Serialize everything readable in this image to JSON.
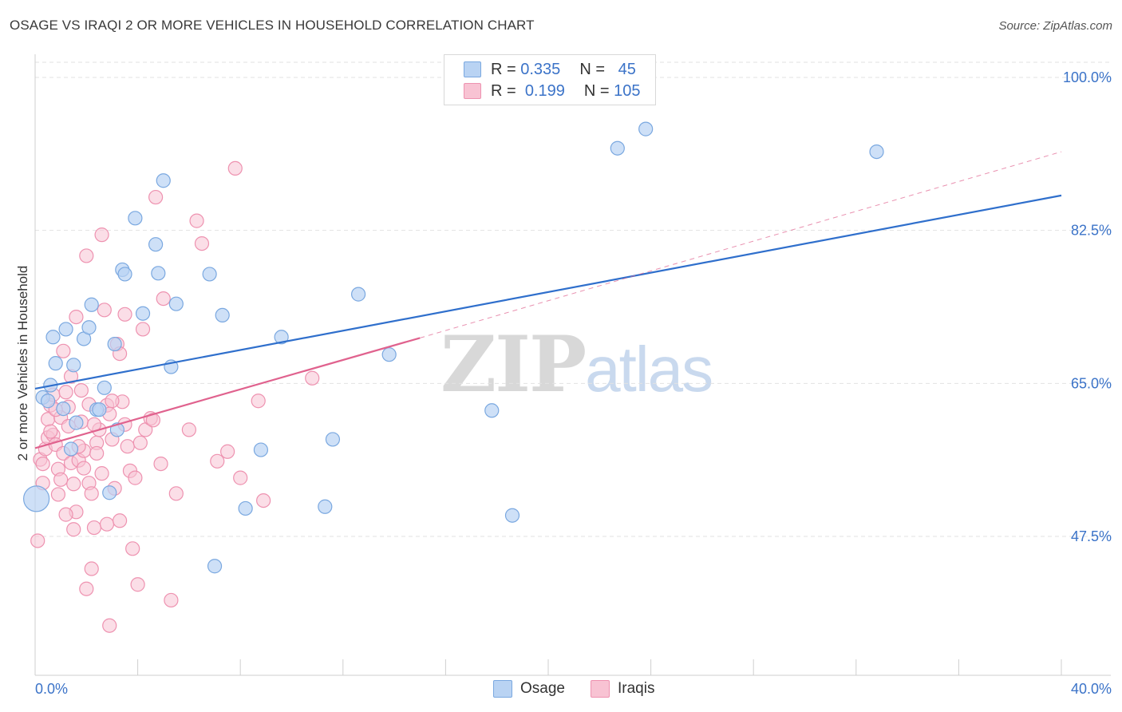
{
  "title": "OSAGE VS IRAQI 2 OR MORE VEHICLES IN HOUSEHOLD CORRELATION CHART",
  "source": "Source: ZipAtlas.com",
  "watermark": {
    "zip": "ZIP",
    "atlas": "atlas"
  },
  "legend": {
    "osage": {
      "r_label": "R =",
      "r_value": "0.335",
      "n_label": "N =",
      "n_value": "45"
    },
    "iraqis": {
      "r_label": "R =",
      "r_value": "0.199",
      "n_label": "N =",
      "n_value": "105"
    }
  },
  "colors": {
    "osage_fill": "#b9d3f3",
    "osage_stroke": "#7aa8e0",
    "osage_line": "#2f6fcc",
    "iraqis_fill": "#f8c3d3",
    "iraqis_stroke": "#ee92b0",
    "iraqis_line": "#e0628e",
    "tick_label": "#3b73c8",
    "grid": "#e2e2e2"
  },
  "chart_data": {
    "type": "scatter",
    "title": "OSAGE VS IRAQI 2 OR MORE VEHICLES IN HOUSEHOLD CORRELATION CHART",
    "xlabel": "",
    "ylabel": "2 or more Vehicles in Household",
    "xlim": [
      0,
      40
    ],
    "ylim": [
      32,
      102
    ],
    "x_tick_labels": [
      {
        "value": 0,
        "label": "0.0%"
      },
      {
        "value": 40,
        "label": "40.0%"
      }
    ],
    "y_tick_labels": [
      {
        "value": 100,
        "label": "100.0%"
      },
      {
        "value": 82.5,
        "label": "82.5%"
      },
      {
        "value": 65,
        "label": "65.0%"
      },
      {
        "value": 47.5,
        "label": "47.5%"
      }
    ],
    "series": [
      {
        "name": "Osage",
        "trend": {
          "x0": 0,
          "y0": 64.4,
          "x1": 40,
          "y1": 86.5
        },
        "points": [
          [
            0.3,
            63.4
          ],
          [
            0.5,
            63.0
          ],
          [
            0.6,
            64.8
          ],
          [
            0.7,
            70.3
          ],
          [
            0.8,
            67.3
          ],
          [
            1.1,
            62.1
          ],
          [
            1.2,
            71.2
          ],
          [
            1.4,
            57.5
          ],
          [
            1.5,
            67.1
          ],
          [
            1.6,
            60.5
          ],
          [
            1.9,
            70.1
          ],
          [
            2.1,
            71.4
          ],
          [
            2.2,
            74.0
          ],
          [
            2.4,
            62.0
          ],
          [
            2.5,
            62.0
          ],
          [
            2.7,
            64.5
          ],
          [
            2.9,
            52.5
          ],
          [
            3.1,
            69.5
          ],
          [
            3.2,
            59.7
          ],
          [
            3.4,
            78.0
          ],
          [
            3.5,
            77.5
          ],
          [
            3.9,
            83.9
          ],
          [
            4.2,
            73.0
          ],
          [
            4.7,
            80.9
          ],
          [
            4.8,
            77.6
          ],
          [
            5.0,
            88.2
          ],
          [
            5.3,
            66.9
          ],
          [
            5.5,
            74.1
          ],
          [
            6.8,
            77.5
          ],
          [
            7.0,
            44.1
          ],
          [
            7.3,
            72.8
          ],
          [
            8.2,
            50.7
          ],
          [
            8.8,
            57.4
          ],
          [
            9.6,
            70.3
          ],
          [
            11.3,
            50.9
          ],
          [
            11.6,
            58.6
          ],
          [
            12.6,
            75.2
          ],
          [
            13.8,
            68.3
          ],
          [
            17.8,
            61.9
          ],
          [
            18.6,
            49.9
          ],
          [
            22.7,
            91.9
          ],
          [
            23.8,
            94.1
          ],
          [
            32.8,
            91.5
          ],
          [
            0.05,
            51.8
          ]
        ]
      },
      {
        "name": "Iraqis",
        "trend": {
          "x0": 0,
          "y0": 57.6,
          "x1": 15,
          "y1": 70.2,
          "dashed_to": {
            "x": 40,
            "y": 91.5
          }
        },
        "points": [
          [
            0.1,
            47.0
          ],
          [
            0.2,
            56.3
          ],
          [
            0.3,
            53.6
          ],
          [
            0.3,
            55.8
          ],
          [
            0.4,
            57.5
          ],
          [
            0.5,
            58.8
          ],
          [
            0.5,
            60.9
          ],
          [
            0.6,
            62.5
          ],
          [
            0.7,
            63.7
          ],
          [
            0.7,
            59.1
          ],
          [
            0.8,
            58.0
          ],
          [
            0.9,
            55.2
          ],
          [
            0.9,
            52.3
          ],
          [
            1.0,
            61.1
          ],
          [
            1.1,
            68.7
          ],
          [
            1.1,
            57.0
          ],
          [
            1.2,
            64.0
          ],
          [
            1.3,
            60.1
          ],
          [
            1.4,
            55.9
          ],
          [
            1.5,
            53.5
          ],
          [
            1.5,
            48.3
          ],
          [
            1.6,
            50.3
          ],
          [
            1.6,
            72.6
          ],
          [
            1.7,
            56.2
          ],
          [
            1.8,
            60.6
          ],
          [
            1.8,
            64.2
          ],
          [
            1.9,
            55.3
          ],
          [
            1.9,
            57.3
          ],
          [
            2.0,
            41.5
          ],
          [
            2.1,
            53.6
          ],
          [
            2.1,
            62.6
          ],
          [
            2.2,
            52.4
          ],
          [
            2.2,
            43.8
          ],
          [
            2.3,
            48.5
          ],
          [
            2.4,
            58.2
          ],
          [
            2.5,
            59.7
          ],
          [
            2.6,
            54.7
          ],
          [
            2.7,
            73.4
          ],
          [
            2.8,
            62.5
          ],
          [
            2.8,
            48.9
          ],
          [
            2.9,
            37.3
          ],
          [
            3.0,
            58.6
          ],
          [
            3.1,
            53.0
          ],
          [
            3.2,
            69.5
          ],
          [
            3.3,
            68.4
          ],
          [
            3.4,
            62.9
          ],
          [
            3.5,
            60.3
          ],
          [
            3.6,
            57.8
          ],
          [
            3.7,
            55.0
          ],
          [
            3.8,
            46.1
          ],
          [
            3.9,
            54.2
          ],
          [
            4.0,
            42.0
          ],
          [
            4.1,
            58.2
          ],
          [
            4.2,
            71.2
          ],
          [
            4.3,
            59.7
          ],
          [
            4.5,
            61.0
          ],
          [
            4.7,
            86.3
          ],
          [
            4.9,
            55.8
          ],
          [
            5.0,
            74.7
          ],
          [
            5.3,
            40.2
          ],
          [
            5.5,
            52.4
          ],
          [
            6.0,
            59.7
          ],
          [
            6.3,
            83.6
          ],
          [
            6.5,
            81.0
          ],
          [
            7.1,
            56.1
          ],
          [
            7.5,
            57.2
          ],
          [
            7.8,
            89.6
          ],
          [
            8.0,
            54.2
          ],
          [
            8.7,
            63.0
          ],
          [
            8.9,
            51.6
          ],
          [
            10.8,
            65.6
          ],
          [
            1.4,
            65.8
          ],
          [
            2.0,
            79.6
          ],
          [
            2.6,
            82.0
          ],
          [
            3.5,
            72.9
          ],
          [
            1.3,
            62.3
          ],
          [
            2.3,
            60.3
          ],
          [
            0.8,
            62.0
          ],
          [
            1.0,
            54.0
          ],
          [
            1.7,
            57.8
          ],
          [
            2.4,
            57.0
          ],
          [
            3.0,
            63.0
          ],
          [
            0.6,
            59.5
          ],
          [
            1.2,
            50.0
          ],
          [
            2.9,
            61.5
          ],
          [
            3.3,
            49.3
          ],
          [
            4.6,
            60.8
          ]
        ]
      }
    ],
    "legend_position": "top-center"
  }
}
